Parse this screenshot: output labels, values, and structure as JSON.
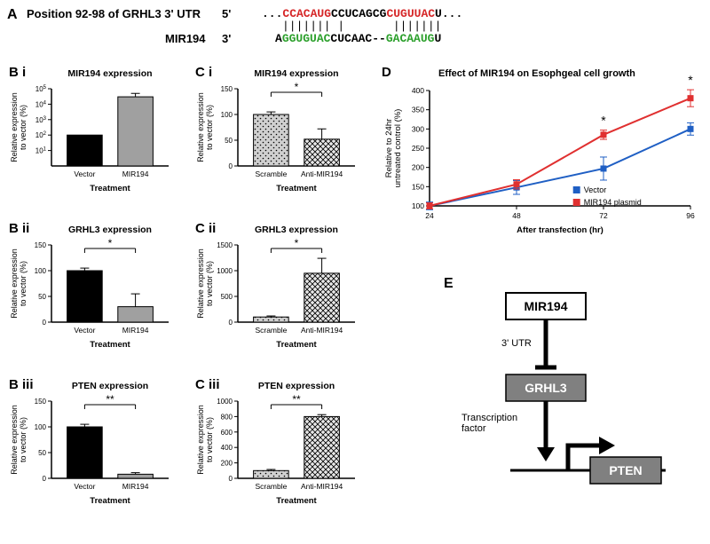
{
  "panelA": {
    "label": "A",
    "title": "Position 92-98 of GRHL3 3' UTR",
    "prime5": "5'",
    "prime3": "3'",
    "mir194_label": "MIR194",
    "top_seq_parts": [
      {
        "text": "...",
        "color": "black"
      },
      {
        "text": "CCACAUG",
        "color": "red"
      },
      {
        "text": "CCUCAGCG",
        "color": "black"
      },
      {
        "text": "CUGUUAC",
        "color": "red"
      },
      {
        "text": "U...",
        "color": "black"
      }
    ],
    "pairs": "||||||| |       |||||||",
    "bottom_seq_parts": [
      {
        "text": "A",
        "color": "black"
      },
      {
        "text": "GGUGUAC",
        "color": "green"
      },
      {
        "text": "CUCAAC--",
        "color": "black"
      },
      {
        "text": "GACAAUG",
        "color": "green"
      },
      {
        "text": "U",
        "color": "black"
      }
    ]
  },
  "panelBi": {
    "label": "B i",
    "title": "MIR194 expression",
    "categories": [
      "Vector",
      "MIR194"
    ],
    "values": [
      100,
      30000
    ],
    "errors": [
      0,
      20000
    ],
    "colors": [
      "#000000",
      "#a0a0a0"
    ],
    "ylabel": "Relative expression\nto vector (%)",
    "xlabel": "Treatment",
    "log": true,
    "ymax": 100000,
    "ticks": [
      1,
      2,
      3,
      4,
      5
    ]
  },
  "panelBii": {
    "label": "B ii",
    "title": "GRHL3 expression",
    "categories": [
      "Vector",
      "MIR194"
    ],
    "values": [
      100,
      30
    ],
    "errors": [
      5,
      25
    ],
    "colors": [
      "#000000",
      "#a0a0a0"
    ],
    "ylabel": "Relative expression\nto vector (%)",
    "xlabel": "Treatment",
    "ymax": 150,
    "ticks": [
      0,
      50,
      100,
      150
    ],
    "sig": "*"
  },
  "panelBiii": {
    "label": "B iii",
    "title": "PTEN expression",
    "categories": [
      "Vector",
      "MIR194"
    ],
    "values": [
      100,
      8
    ],
    "errors": [
      5,
      3
    ],
    "colors": [
      "#000000",
      "#a0a0a0"
    ],
    "ylabel": "Relative expression\nto vector (%)",
    "xlabel": "Treatment",
    "ymax": 150,
    "ticks": [
      0,
      50,
      100,
      150
    ],
    "sig": "**"
  },
  "panelCi": {
    "label": "C i",
    "title": "MIR194 expression",
    "categories": [
      "Scramble",
      "Anti-MIR194"
    ],
    "values": [
      100,
      52
    ],
    "errors": [
      5,
      20
    ],
    "colors": [
      "pattern1",
      "pattern2"
    ],
    "ylabel": "Relative expression\nto vector (%)",
    "xlabel": "Treatment",
    "ymax": 150,
    "ticks": [
      0,
      50,
      100,
      150
    ],
    "sig": "*"
  },
  "panelCii": {
    "label": "C ii",
    "title": "GRHL3 expression",
    "categories": [
      "Scramble",
      "Anti-MIR194"
    ],
    "values": [
      100,
      950
    ],
    "errors": [
      20,
      290
    ],
    "colors": [
      "pattern1",
      "pattern2"
    ],
    "ylabel": "Relative expression\nto vector (%)",
    "xlabel": "Treatment",
    "ymax": 1500,
    "ticks": [
      0,
      500,
      1000,
      1500
    ],
    "sig": "*"
  },
  "panelCiii": {
    "label": "C iii",
    "title": "PTEN expression",
    "categories": [
      "Scramble",
      "Anti-MIR194"
    ],
    "values": [
      100,
      800
    ],
    "errors": [
      15,
      25
    ],
    "colors": [
      "pattern1",
      "pattern2"
    ],
    "ylabel": "Relative expression\nto vector (%)",
    "xlabel": "Treatment",
    "ymax": 1000,
    "ticks": [
      0,
      200,
      400,
      600,
      800,
      1000
    ],
    "sig": "**"
  },
  "panelD": {
    "label": "D",
    "title": "Effect of MIR194 on Esophgeal cell growth",
    "xlabel": "After transfection (hr)",
    "ylabel": "Relative to 24hr\nuntreated control (%)",
    "x": [
      24,
      48,
      72,
      96
    ],
    "vector": [
      100,
      148,
      197,
      300
    ],
    "vector_err": [
      10,
      18,
      30,
      16
    ],
    "mir194": [
      100,
      156,
      285,
      380
    ],
    "mir194_err": [
      8,
      12,
      12,
      22
    ],
    "vector_color": "#1f5fc4",
    "mir194_color": "#e03030",
    "legend": [
      "Vector",
      "MIR194 plasmid"
    ],
    "ymax": 400,
    "ymin": 100,
    "yticks": [
      100,
      150,
      200,
      250,
      300,
      350,
      400
    ],
    "sig_x": [
      72,
      96
    ]
  },
  "panelE": {
    "label": "E",
    "nodes": {
      "mir194": "MIR194",
      "grhl3": "GRHL3",
      "pten": "PTEN"
    },
    "labels": {
      "utr": "3' UTR",
      "tf": "Transcription\nfactor"
    }
  }
}
